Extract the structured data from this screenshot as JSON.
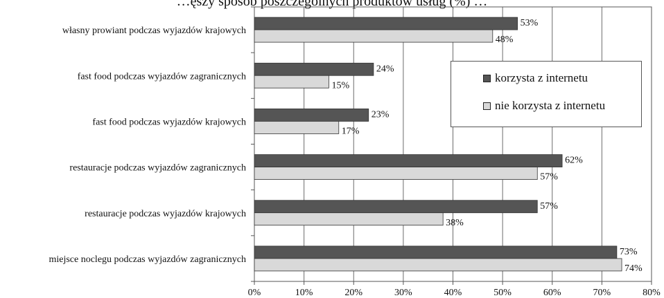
{
  "chart_data": {
    "type": "bar",
    "orientation": "horizontal",
    "title": "…ęszy sposób poszczególnych produktów usług (%) …",
    "categories": [
      "własny prowiant podczas wyjazdów krajowych",
      "fast food podczas wyjazdów zagranicznych",
      "fast food podczas wyjazdów krajowych",
      "restauracje podczas wyjazdów zagranicznych",
      "restauracje podczas wyjazdów krajowych",
      "miejsce noclegu podczas wyjazdów zagranicznych"
    ],
    "series": [
      {
        "name": "korzysta z internetu",
        "color": "#555555",
        "values": [
          53,
          24,
          23,
          62,
          57,
          73
        ],
        "labels": [
          "53%",
          "24%",
          "23%",
          "62%",
          "57%",
          "73%"
        ]
      },
      {
        "name": "nie korzysta z internetu",
        "color": "#d9d9d9",
        "values": [
          48,
          15,
          17,
          57,
          38,
          74
        ],
        "labels": [
          "48%",
          "15%",
          "17%",
          "57%",
          "38%",
          "74%"
        ]
      }
    ],
    "xlim": [
      0,
      80
    ],
    "xticks": [
      0,
      10,
      20,
      30,
      40,
      50,
      60,
      70,
      80
    ],
    "xtick_labels": [
      "0%",
      "10%",
      "20%",
      "30%",
      "40%",
      "50%",
      "60%",
      "70%",
      "80%"
    ],
    "grid": "vertical",
    "legend_position": "right"
  }
}
